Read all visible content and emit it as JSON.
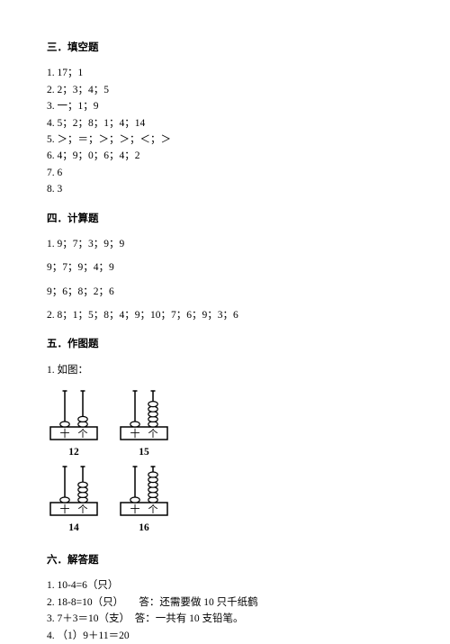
{
  "colors": {
    "text": "#000000",
    "bg": "#ffffff",
    "stroke": "#000000",
    "beadFill": "#ffffff"
  },
  "typography": {
    "baseFontSize": 11.5,
    "headingWeight": "bold",
    "lineHeight": 1.6,
    "fontFamily": "SimSun"
  },
  "sections": {
    "s3": {
      "heading": "三．填空题",
      "items": [
        "1. 17；1",
        "2. 2；3；4；5",
        "3. 一；1；9",
        "4. 5；2；8；1；4；14",
        "5. ＞；＝；＞；＞；＜；＞",
        "6. 4；9；0；6；4；2",
        "7. 6",
        "8. 3"
      ]
    },
    "s4": {
      "heading": "四．计算题",
      "items": [
        "1. 9；7；3；9；9",
        "9；7；9；4；9",
        "9；6；8；2；6",
        "2. 8；1；5；8；4；9；10；7；6；9；3；6"
      ]
    },
    "s5": {
      "heading": "五．作图题",
      "intro": "1. 如图：",
      "abacus": {
        "rodLabelLeft": "十",
        "rodLabelRight": "个",
        "stroke": "#000000",
        "beadFill": "#ffffff",
        "row1": [
          {
            "tens": 1,
            "ones": 2,
            "number": "12"
          },
          {
            "tens": 1,
            "ones": 5,
            "number": "15"
          }
        ],
        "row2": [
          {
            "tens": 1,
            "ones": 4,
            "number": "14"
          },
          {
            "tens": 1,
            "ones": 6,
            "number": "16"
          }
        ]
      }
    },
    "s6": {
      "heading": "六．解答题",
      "items": [
        "1. 10-4=6（只）",
        "2. 18-8=10（只）　　答：还需要做 10 只千纸鹤",
        "3. 7＋3＝10（支）　答：一共有 10 支铅笔。",
        "4. （1）9＋11＝20"
      ]
    }
  }
}
